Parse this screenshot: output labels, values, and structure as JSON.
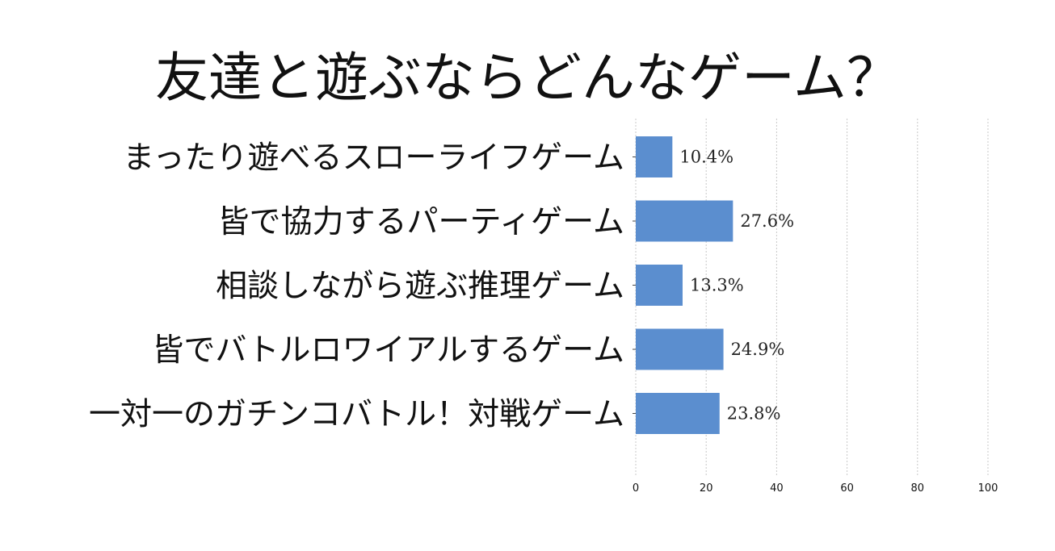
{
  "chart_data": {
    "type": "bar",
    "orientation": "horizontal",
    "title": "友達と遊ぶならどんなゲーム？",
    "categories": [
      "まったり遊べるスローライフゲーム",
      "皆で協力するパーティゲーム",
      "相談しながら遊ぶ推理ゲーム",
      "皆でバトルロワイアルするゲーム",
      "一対一のガチンコバトル！対戦ゲーム"
    ],
    "values": [
      10.4,
      27.6,
      13.3,
      24.9,
      23.8
    ],
    "value_labels": [
      "10.4%",
      "27.6%",
      "13.3%",
      "24.9%",
      "23.8%"
    ],
    "xlabel": "",
    "ylabel": "",
    "xlim": [
      0,
      100
    ],
    "xticks": [
      0,
      20,
      40,
      60,
      80,
      100
    ],
    "grid": "vertical dashed",
    "legend": "none",
    "bar_color": "#5b8ecf"
  }
}
